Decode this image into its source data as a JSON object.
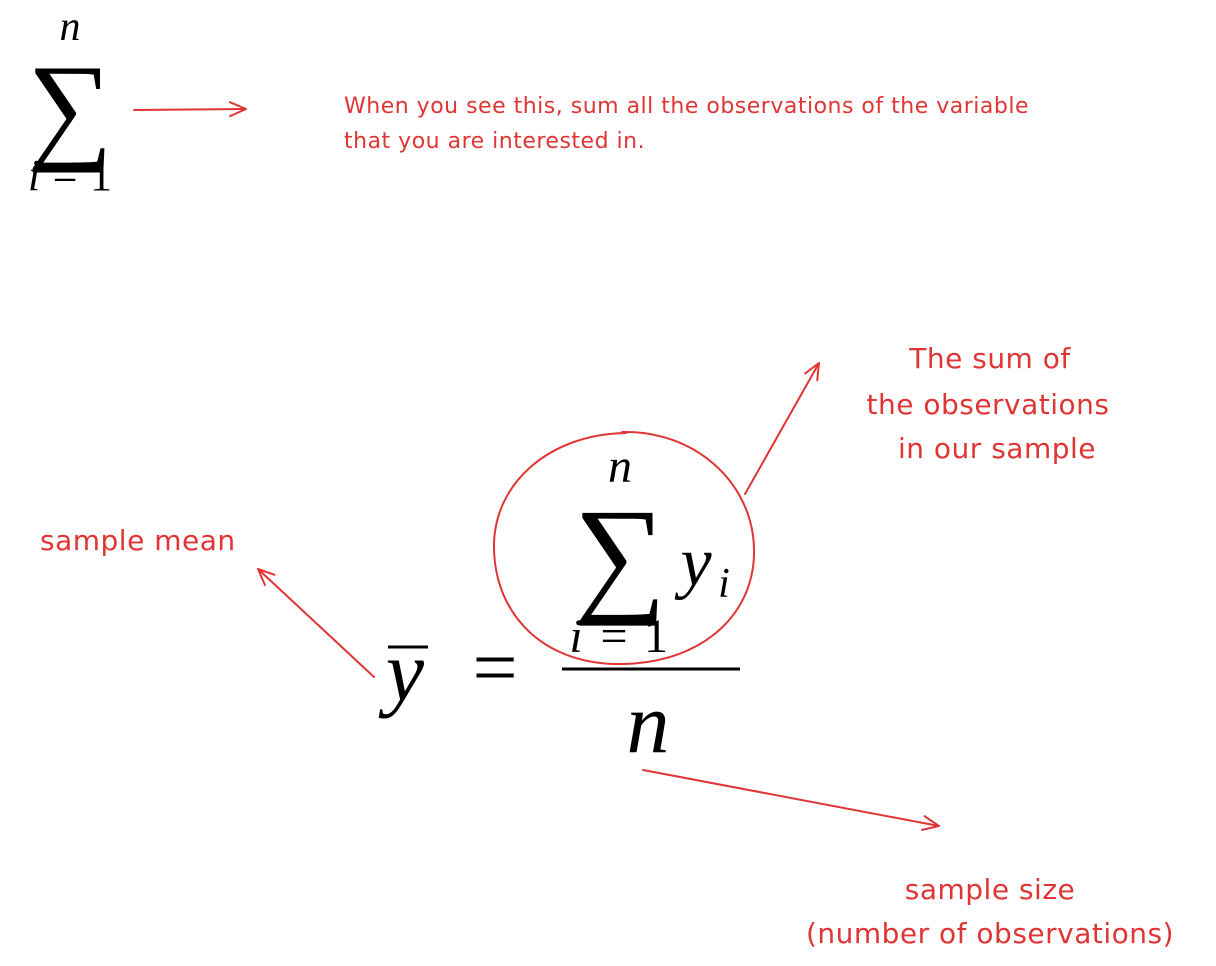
{
  "colors": {
    "ink": "#000000",
    "annotation": "#e03535"
  },
  "sigma_notation": {
    "symbol": "∑",
    "upper": "n",
    "lower_var": "i",
    "lower_eq": "=",
    "lower_start": "1",
    "note_line1": "When you see this, sum all the observations of the variable",
    "note_line2": "that you are interested in."
  },
  "mean_formula": {
    "y_bar": "y",
    "equals": "=",
    "upper": "n",
    "symbol": "∑",
    "term": "y",
    "term_sub": "i",
    "lower_var": "i",
    "lower_eq": "=",
    "lower_start": "1",
    "denominator": "n"
  },
  "annotations": {
    "sum_line1": "The sum of",
    "sum_line2": "the observations",
    "sum_line3": "in our sample",
    "mean": "sample mean",
    "size_line1": "sample size",
    "size_line2": "(number of observations)"
  }
}
